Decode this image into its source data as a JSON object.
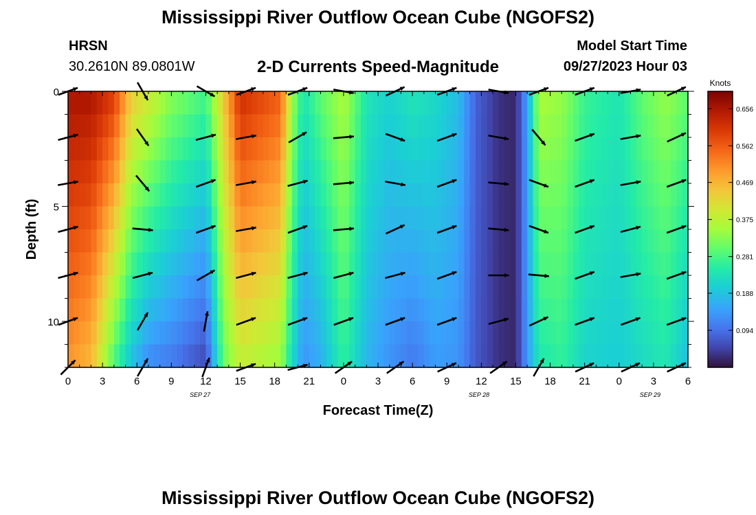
{
  "page": {
    "title": "Mississippi River Outflow Ocean Cube (NGOFS2)",
    "bottom_title": "Mississippi River Outflow Ocean Cube (NGOFS2)"
  },
  "station": {
    "name": "HRSN",
    "coords": "30.2610N  89.0801W"
  },
  "model": {
    "label": "Model Start Time",
    "time": "09/27/2023 Hour 03"
  },
  "chart_data": {
    "type": "heatmap",
    "title": "2-D Currents Speed-Magnitude",
    "xlabel": "Forecast Time(Z)",
    "ylabel": "Depth (ft)",
    "x_range_hours": [
      0,
      54
    ],
    "y_range_ft": [
      0,
      12
    ],
    "x_ticks": [
      {
        "h": 0,
        "label": "0"
      },
      {
        "h": 3,
        "label": "3"
      },
      {
        "h": 6,
        "label": "6"
      },
      {
        "h": 9,
        "label": "9"
      },
      {
        "h": 12,
        "label": "12"
      },
      {
        "h": 15,
        "label": "15"
      },
      {
        "h": 18,
        "label": "18"
      },
      {
        "h": 21,
        "label": "21"
      },
      {
        "h": 24,
        "label": "0"
      },
      {
        "h": 27,
        "label": "3"
      },
      {
        "h": 30,
        "label": "6"
      },
      {
        "h": 33,
        "label": "9"
      },
      {
        "h": 36,
        "label": "12"
      },
      {
        "h": 39,
        "label": "15"
      },
      {
        "h": 42,
        "label": "18"
      },
      {
        "h": 45,
        "label": "21"
      },
      {
        "h": 48,
        "label": "0"
      },
      {
        "h": 51,
        "label": "3"
      },
      {
        "h": 54,
        "label": "6"
      }
    ],
    "y_ticks": [
      {
        "d": 0,
        "label": "0"
      },
      {
        "d": 5,
        "label": "5"
      },
      {
        "d": 10,
        "label": "10"
      }
    ],
    "date_labels": [
      {
        "h": 11.5,
        "label": "SEP 27"
      },
      {
        "h": 35.8,
        "label": "SEP 28"
      },
      {
        "h": 50.7,
        "label": "SEP 29"
      }
    ],
    "colorbar": {
      "unit": "Knots",
      "min": 0.0,
      "max": 0.7,
      "ticks": [
        "0.656",
        "0.562",
        "0.469",
        "0.375",
        "0.281",
        "0.188",
        "0.094"
      ],
      "tick_values": [
        0.656,
        0.562,
        0.469,
        0.375,
        0.281,
        0.188,
        0.094
      ]
    },
    "depth_levels_ft": [
      0,
      1,
      2,
      3,
      4,
      5,
      6,
      7,
      8,
      9,
      10,
      11,
      12
    ],
    "speed_profile": [
      {
        "h": 0.0,
        "top": 0.66,
        "bottom": 0.5
      },
      {
        "h": 2.0,
        "top": 0.66,
        "bottom": 0.46
      },
      {
        "h": 4.0,
        "top": 0.6,
        "bottom": 0.28
      },
      {
        "h": 5.5,
        "top": 0.44,
        "bottom": 0.18
      },
      {
        "h": 7.0,
        "top": 0.4,
        "bottom": 0.12
      },
      {
        "h": 9.0,
        "top": 0.33,
        "bottom": 0.1
      },
      {
        "h": 12.0,
        "top": 0.28,
        "bottom": 0.05
      },
      {
        "h": 13.5,
        "top": 0.44,
        "bottom": 0.3
      },
      {
        "h": 15.0,
        "top": 0.62,
        "bottom": 0.38
      },
      {
        "h": 18.5,
        "top": 0.56,
        "bottom": 0.34
      },
      {
        "h": 19.5,
        "top": 0.35,
        "bottom": 0.22
      },
      {
        "h": 20.5,
        "top": 0.24,
        "bottom": 0.13
      },
      {
        "h": 22.0,
        "top": 0.3,
        "bottom": 0.16
      },
      {
        "h": 24.0,
        "top": 0.36,
        "bottom": 0.26
      },
      {
        "h": 26.0,
        "top": 0.24,
        "bottom": 0.17
      },
      {
        "h": 28.0,
        "top": 0.21,
        "bottom": 0.13
      },
      {
        "h": 30.0,
        "top": 0.24,
        "bottom": 0.1
      },
      {
        "h": 32.0,
        "top": 0.22,
        "bottom": 0.14
      },
      {
        "h": 34.0,
        "top": 0.18,
        "bottom": 0.13
      },
      {
        "h": 35.5,
        "top": 0.08,
        "bottom": 0.07
      },
      {
        "h": 37.5,
        "top": 0.03,
        "bottom": 0.03
      },
      {
        "h": 39.0,
        "top": 0.02,
        "bottom": 0.02
      },
      {
        "h": 40.0,
        "top": 0.15,
        "bottom": 0.14
      },
      {
        "h": 41.0,
        "top": 0.36,
        "bottom": 0.24
      },
      {
        "h": 43.0,
        "top": 0.34,
        "bottom": 0.26
      },
      {
        "h": 45.0,
        "top": 0.27,
        "bottom": 0.21
      },
      {
        "h": 48.0,
        "top": 0.24,
        "bottom": 0.2
      },
      {
        "h": 50.0,
        "top": 0.3,
        "bottom": 0.22
      },
      {
        "h": 52.0,
        "top": 0.34,
        "bottom": 0.24
      },
      {
        "h": 54.0,
        "top": 0.3,
        "bottom": 0.18
      }
    ],
    "vector_times_h": [
      0.0,
      6.5,
      12.0,
      15.5,
      20.0,
      24.0,
      28.5,
      33.0,
      37.5,
      41.0,
      45.0,
      49.0,
      53.0
    ],
    "vector_depths_ft": [
      0,
      2,
      4,
      6,
      8,
      10,
      12
    ],
    "vector_directions_deg": [
      [
        20,
        300,
        330,
        20,
        20,
        350,
        25,
        20,
        350,
        20,
        20,
        10,
        25
      ],
      [
        15,
        305,
        15,
        10,
        30,
        5,
        340,
        20,
        350,
        310,
        20,
        10,
        25
      ],
      [
        10,
        310,
        20,
        10,
        15,
        5,
        350,
        20,
        355,
        340,
        20,
        10,
        20
      ],
      [
        15,
        355,
        20,
        10,
        20,
        5,
        25,
        20,
        355,
        340,
        20,
        15,
        20
      ],
      [
        15,
        15,
        30,
        15,
        15,
        15,
        15,
        20,
        0,
        355,
        20,
        10,
        20
      ],
      [
        20,
        60,
        80,
        20,
        20,
        20,
        20,
        20,
        15,
        25,
        20,
        20,
        20
      ],
      [
        45,
        60,
        70,
        20,
        15,
        35,
        35,
        25,
        35,
        60,
        25,
        25,
        25
      ]
    ]
  }
}
